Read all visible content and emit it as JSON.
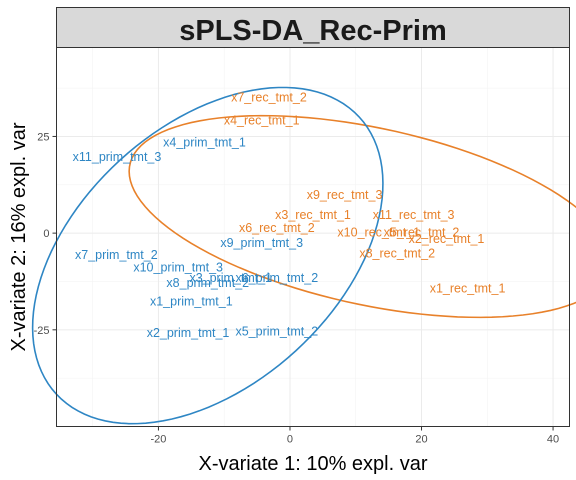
{
  "chart_data": {
    "type": "scatter",
    "title": "sPLS-DA_Rec-Prim",
    "xlabel": "X-variate 1: 10% expl. var",
    "ylabel": "X-variate 2: 16% expl. var",
    "xlim": [
      -35.5,
      42.5
    ],
    "ylim": [
      -50,
      48
    ],
    "xticks": [
      -20,
      0,
      20,
      40
    ],
    "yticks": [
      -25,
      0,
      25
    ],
    "grid": true,
    "legend": "none",
    "colors": {
      "rec": "#E8812A",
      "prim": "#2E86C4"
    },
    "series": [
      {
        "group": "rec",
        "points": [
          {
            "label": "x7_rec_tmt_2",
            "x": -3.2,
            "y": 35.2
          },
          {
            "label": "x4_rec_tmt_1",
            "x": -4.3,
            "y": 29.3
          },
          {
            "label": "x9_rec_tmt_3",
            "x": 8.3,
            "y": 10.0
          },
          {
            "label": "x3_rec_tmt_1",
            "x": 3.5,
            "y": 4.8
          },
          {
            "label": "x11_rec_tmt_3",
            "x": 18.8,
            "y": 4.8
          },
          {
            "label": "x6_rec_tmt_2",
            "x": -2.0,
            "y": 1.5
          },
          {
            "label": "x10_rec_tmt_1",
            "x": 13.5,
            "y": 0.3
          },
          {
            "label": "x5_rec_tmt_2",
            "x": 20.0,
            "y": 0.3
          },
          {
            "label": "x2_rec_tmt_1",
            "x": 23.8,
            "y": -1.4
          },
          {
            "label": "x8_rec_tmt_2",
            "x": 16.3,
            "y": -5.2
          },
          {
            "label": "x1_rec_tmt_1",
            "x": 27.0,
            "y": -14.2
          }
        ],
        "ellipse": {
          "cx": 12.3,
          "cy": 4.3,
          "rx": 39.5,
          "ry": 21.7,
          "angle_deg": -26
        }
      },
      {
        "group": "prim",
        "points": [
          {
            "label": "x4_prim_tmt_1",
            "x": -13.0,
            "y": 23.6
          },
          {
            "label": "x11_prim_tmt_3",
            "x": -26.3,
            "y": 19.8
          },
          {
            "label": "x9_prim_tmt_3",
            "x": -4.3,
            "y": -2.4
          },
          {
            "label": "x7_prim_tmt_2",
            "x": -26.4,
            "y": -5.5
          },
          {
            "label": "x10_prim_tmt_3",
            "x": -17.0,
            "y": -8.8
          },
          {
            "label": "x3_prim_tmt_1",
            "x": -9.0,
            "y": -11.5
          },
          {
            "label": "x6_prim_tmt_2",
            "x": -2.0,
            "y": -11.5
          },
          {
            "label": "x8_prim_tmt_2",
            "x": -12.5,
            "y": -12.8
          },
          {
            "label": "x1_prim_tmt_1",
            "x": -15.0,
            "y": -17.6
          },
          {
            "label": "x2_prim_tmt_1",
            "x": -15.5,
            "y": -25.7
          },
          {
            "label": "x5_prim_tmt_2",
            "x": -2.0,
            "y": -25.3
          }
        ],
        "ellipse": {
          "cx": -12.5,
          "cy": -5.8,
          "rx": 23.0,
          "ry": 45.5,
          "angle_deg": -20
        }
      }
    ]
  }
}
